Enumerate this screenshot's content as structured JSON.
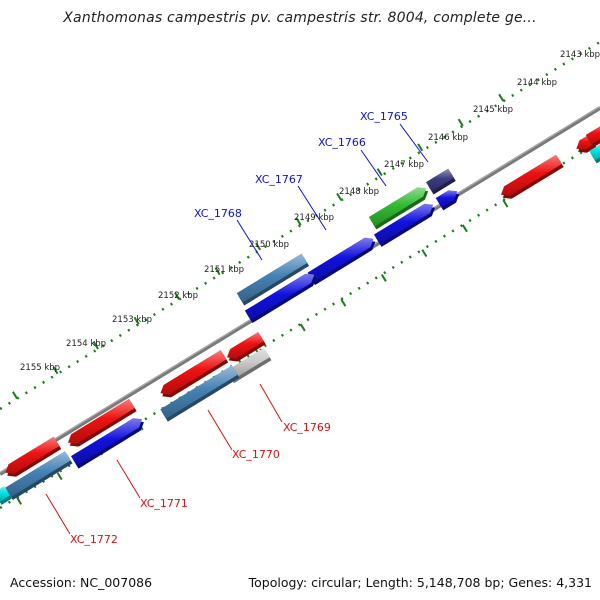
{
  "title": "Xanthomonas campestris pv. campestris str. 8004, complete ge...",
  "footer": {
    "accession": "Accession: NC_007086",
    "summary": "Topology: circular; Length: 5,148,708 bp; Genes: 4,331"
  },
  "colors": {
    "forward_label": "#1010dd",
    "reverse_label": "#dd1010",
    "tick": "#1f7a1f",
    "backbone": "#808080",
    "gene_red": "#ee1111",
    "gene_blue": "#1111dd",
    "gene_steel": "#4682b4",
    "gene_green": "#33bb33",
    "gene_purple": "#3b3b80",
    "gene_grey": "#c8c8c8",
    "gene_cyan": "#00e0e0"
  },
  "scale": {
    "unit": "kbp",
    "tick_labels": [
      "2143 kbp",
      "2144 kbp",
      "2145 kbp",
      "2146 kbp",
      "2147 kbp",
      "2148 kbp",
      "2149 kbp",
      "2150 kbp",
      "2151 kbp",
      "2152 kbp",
      "2153 kbp",
      "2154 kbp",
      "2155 kbp"
    ]
  },
  "gene_labels": {
    "forward": [
      "XC_1765",
      "XC_1766",
      "XC_1767",
      "XC_1768"
    ],
    "reverse": [
      "XC_1769",
      "XC_1770",
      "XC_1771",
      "XC_1772"
    ]
  }
}
